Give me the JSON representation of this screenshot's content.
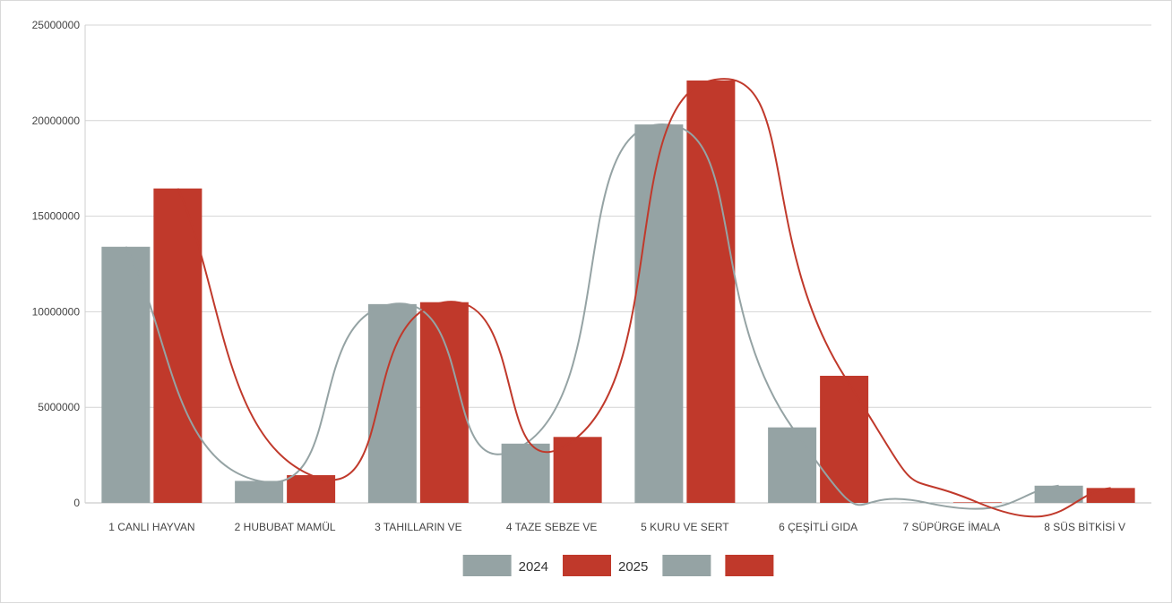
{
  "chart_data": {
    "type": "bar",
    "categories": [
      "1 CANLI HAYVAN",
      "2 HUBUBAT MAMÜL",
      "3 TAHILLARIN VE",
      "4 TAZE SEBZE VE",
      "5 KURU VE SERT",
      "6 ÇEŞİTLİ GIDA",
      "7 SÜPÜRGE İMALA",
      "8 SÜS BİTKİSİ V"
    ],
    "series": [
      {
        "name": "2024",
        "color": "#95a3a4",
        "values": [
          13400000,
          1150000,
          10400000,
          3100000,
          19800000,
          3950000,
          20000,
          900000
        ]
      },
      {
        "name": "2025",
        "color": "#c0392b",
        "values": [
          16450000,
          1450000,
          10500000,
          3450000,
          22100000,
          6650000,
          30000,
          780000
        ]
      }
    ],
    "overlay": {
      "type": "line",
      "smooth": true,
      "series": [
        "2024",
        "2025"
      ]
    },
    "ylim": [
      0,
      25000000
    ],
    "yticks": [
      "0",
      "5000000",
      "10000000",
      "15000000",
      "20000000",
      "25000000"
    ],
    "grid": true,
    "legend": {
      "position": "bottom",
      "entries": [
        {
          "label": "2024",
          "color": "#95a3a4"
        },
        {
          "label": "2025",
          "color": "#c0392b"
        },
        {
          "label": "",
          "color": "#95a3a4"
        },
        {
          "label": "",
          "color": "#c0392b"
        }
      ]
    }
  }
}
